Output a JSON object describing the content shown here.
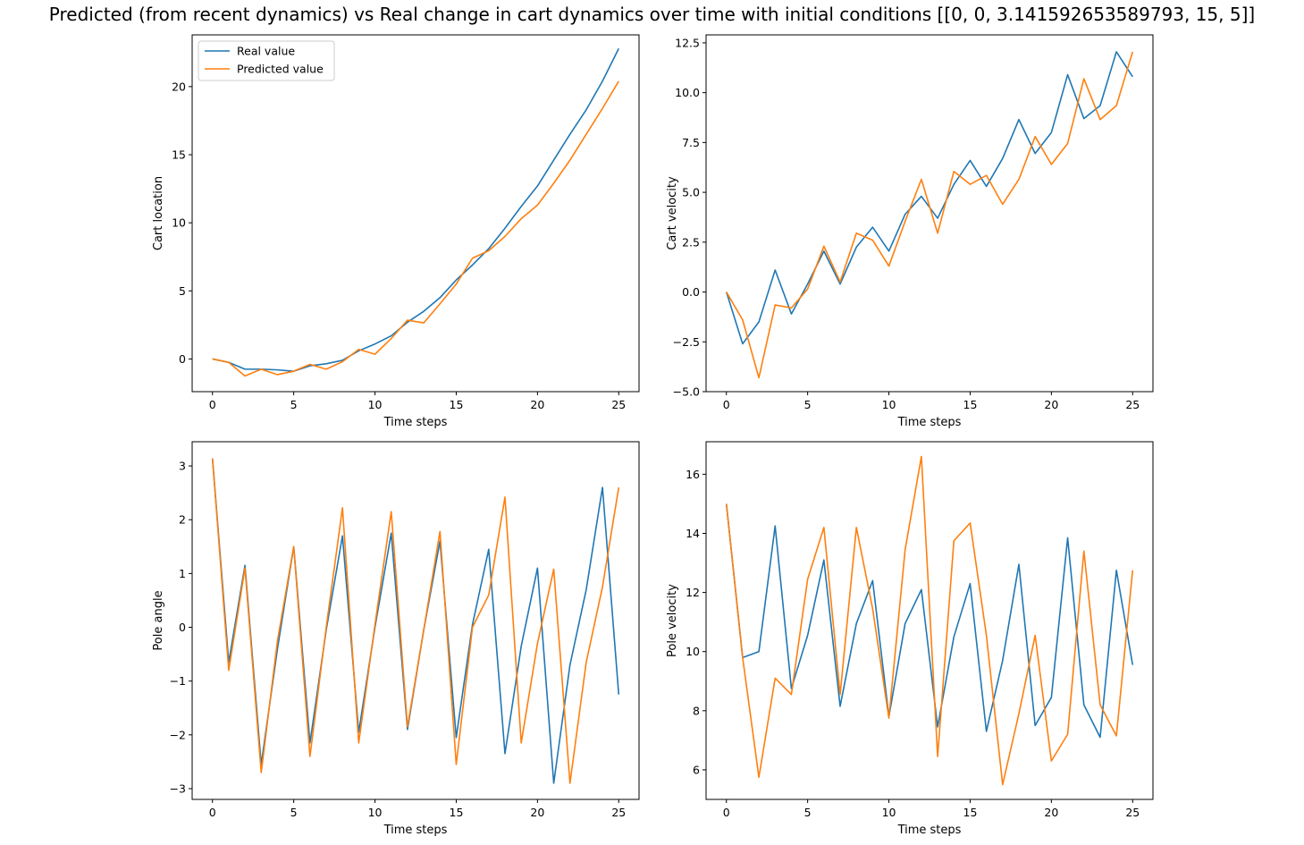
{
  "figure": {
    "title": "Predicted (from recent dynamics) vs Real change in cart dynamics over time with initial conditions [[0, 0, 3.141592653589793, 15, 5]]",
    "colors": {
      "real": "#1f77b4",
      "predicted": "#ff7f0e"
    }
  },
  "chart_data": [
    {
      "type": "line",
      "xlabel": "Time steps",
      "ylabel": "Cart location",
      "xlim": [
        -1.25,
        26.25
      ],
      "ylim": [
        -2.4,
        23.8
      ],
      "xticks": [
        0,
        5,
        10,
        15,
        20,
        25
      ],
      "yticks": [
        0,
        5,
        10,
        15,
        20
      ],
      "legend": "upper-left",
      "x": [
        0,
        1,
        2,
        3,
        4,
        5,
        6,
        7,
        8,
        9,
        10,
        11,
        12,
        13,
        14,
        15,
        16,
        17,
        18,
        19,
        20,
        21,
        22,
        23,
        24,
        25
      ],
      "series": [
        {
          "name": "Real value",
          "color": "#1f77b4",
          "values": [
            0,
            -0.25,
            -0.75,
            -0.75,
            -0.8,
            -0.9,
            -0.5,
            -0.35,
            -0.1,
            0.6,
            1.1,
            1.7,
            2.7,
            3.5,
            4.5,
            5.8,
            6.9,
            8.1,
            9.6,
            11.2,
            12.7,
            14.6,
            16.5,
            18.3,
            20.4,
            22.8
          ]
        },
        {
          "name": "Predicted value",
          "color": "#ff7f0e",
          "values": [
            0,
            -0.25,
            -1.25,
            -0.75,
            -1.15,
            -0.9,
            -0.4,
            -0.75,
            -0.2,
            0.7,
            0.35,
            1.5,
            2.85,
            2.65,
            4.05,
            5.5,
            7.4,
            7.95,
            9.0,
            10.3,
            11.3,
            12.9,
            14.6,
            16.5,
            18.4,
            20.4
          ]
        }
      ]
    },
    {
      "type": "line",
      "xlabel": "Time steps",
      "ylabel": "Cart velocity",
      "xlim": [
        -1.25,
        26.25
      ],
      "ylim": [
        -5.0,
        12.9
      ],
      "xticks": [
        0,
        5,
        10,
        15,
        20,
        25
      ],
      "yticks": [
        -5.0,
        -2.5,
        0.0,
        2.5,
        5.0,
        7.5,
        10.0,
        12.5
      ],
      "yticklabels": [
        "−5.0",
        "−2.5",
        "0.0",
        "2.5",
        "5.0",
        "7.5",
        "10.0",
        "12.5"
      ],
      "x": [
        0,
        1,
        2,
        3,
        4,
        5,
        6,
        7,
        8,
        9,
        10,
        11,
        12,
        13,
        14,
        15,
        16,
        17,
        18,
        19,
        20,
        21,
        22,
        23,
        24,
        25
      ],
      "series": [
        {
          "color": "#1f77b4",
          "values": [
            0,
            -2.6,
            -1.5,
            1.1,
            -1.1,
            0.4,
            2.05,
            0.4,
            2.25,
            3.25,
            2.05,
            3.9,
            4.8,
            3.7,
            5.4,
            6.6,
            5.3,
            6.7,
            8.65,
            6.95,
            8.0,
            10.9,
            8.7,
            9.35,
            12.05,
            10.8
          ]
        },
        {
          "color": "#ff7f0e",
          "values": [
            0,
            -1.4,
            -4.3,
            -0.65,
            -0.8,
            0.15,
            2.3,
            0.5,
            2.95,
            2.6,
            1.3,
            3.55,
            5.65,
            2.95,
            6.05,
            5.4,
            5.85,
            4.4,
            5.65,
            7.8,
            6.4,
            7.45,
            10.7,
            8.65,
            9.35,
            12.05
          ]
        }
      ]
    },
    {
      "type": "line",
      "xlabel": "Time steps",
      "ylabel": "Pole angle",
      "xlim": [
        -1.25,
        26.25
      ],
      "ylim": [
        -3.2,
        3.45
      ],
      "xticks": [
        0,
        5,
        10,
        15,
        20,
        25
      ],
      "yticks": [
        -3,
        -2,
        -1,
        0,
        1,
        2,
        3
      ],
      "yticklabels": [
        "−3",
        "−2",
        "−1",
        "0",
        "1",
        "2",
        "3"
      ],
      "x": [
        0,
        1,
        2,
        3,
        4,
        5,
        6,
        7,
        8,
        9,
        10,
        11,
        12,
        13,
        14,
        15,
        16,
        17,
        18,
        19,
        20,
        21,
        22,
        23,
        24,
        25
      ],
      "series": [
        {
          "color": "#1f77b4",
          "values": [
            3.14,
            -0.65,
            1.15,
            -2.55,
            -0.4,
            1.5,
            -2.15,
            -0.05,
            1.7,
            -1.95,
            0.0,
            1.75,
            -1.9,
            -0.05,
            1.6,
            -2.05,
            0.05,
            1.45,
            -2.35,
            -0.35,
            1.1,
            -2.9,
            -0.7,
            0.7,
            2.6,
            -1.25
          ]
        },
        {
          "color": "#ff7f0e",
          "values": [
            3.14,
            -0.8,
            1.1,
            -2.7,
            -0.25,
            1.5,
            -2.4,
            0.0,
            2.22,
            -2.15,
            0.05,
            2.15,
            -1.85,
            -0.05,
            1.78,
            -2.55,
            0.0,
            0.6,
            2.42,
            -2.15,
            -0.3,
            1.08,
            -2.9,
            -0.65,
            0.75,
            2.6
          ]
        }
      ]
    },
    {
      "type": "line",
      "xlabel": "Time steps",
      "ylabel": "Pole velocity",
      "xlim": [
        -1.25,
        26.25
      ],
      "ylim": [
        5.0,
        17.1
      ],
      "xticks": [
        0,
        5,
        10,
        15,
        20,
        25
      ],
      "yticks": [
        6,
        8,
        10,
        12,
        14,
        16
      ],
      "x": [
        0,
        1,
        2,
        3,
        4,
        5,
        6,
        7,
        8,
        9,
        10,
        11,
        12,
        13,
        14,
        15,
        16,
        17,
        18,
        19,
        20,
        21,
        22,
        23,
        24,
        25
      ],
      "series": [
        {
          "color": "#1f77b4",
          "values": [
            15.0,
            9.8,
            10.0,
            14.25,
            8.75,
            10.55,
            13.1,
            8.15,
            10.95,
            12.4,
            7.8,
            10.95,
            12.1,
            7.45,
            10.5,
            12.3,
            7.3,
            9.7,
            12.95,
            7.5,
            8.45,
            13.85,
            8.2,
            7.1,
            12.75,
            9.55
          ]
        },
        {
          "color": "#ff7f0e",
          "values": [
            15.0,
            9.8,
            5.75,
            9.1,
            8.55,
            12.45,
            14.2,
            8.55,
            14.2,
            11.45,
            7.75,
            13.45,
            16.6,
            6.45,
            13.75,
            14.35,
            10.55,
            5.5,
            7.9,
            10.55,
            6.3,
            7.2,
            13.4,
            8.2,
            7.15,
            12.75
          ]
        }
      ]
    }
  ]
}
